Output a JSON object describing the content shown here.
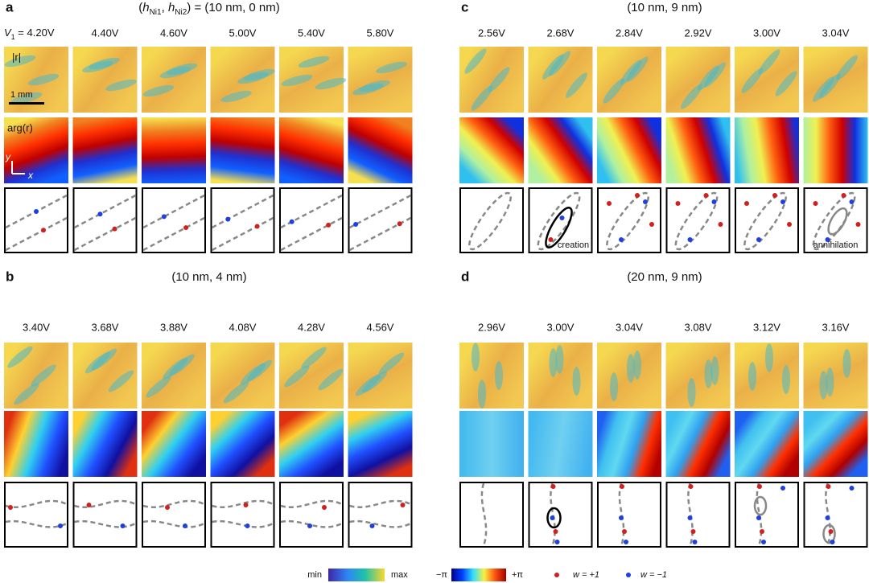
{
  "panels": [
    {
      "letter": "a",
      "title": [
        "(",
        "h",
        "Ni1",
        ", ",
        "h",
        "Ni2",
        ") = (10 nm, 0 nm)"
      ],
      "voltage_prefix": [
        "V",
        "1",
        " = "
      ],
      "voltages": [
        "4.20V",
        "4.40V",
        "4.60V",
        "5.00V",
        "5.40V",
        "5.80V"
      ],
      "row_labels": [
        "|r|",
        "arg(r)"
      ],
      "scale_bar": "1 mm",
      "axes": [
        "y",
        "x"
      ]
    },
    {
      "letter": "b",
      "title": "(10 nm, 4 nm)",
      "voltages": [
        "3.40V",
        "3.68V",
        "3.88V",
        "4.08V",
        "4.28V",
        "4.56V"
      ]
    },
    {
      "letter": "c",
      "title": "(10 nm, 9 nm)",
      "voltages": [
        "2.56V",
        "2.68V",
        "2.84V",
        "2.92V",
        "3.00V",
        "3.04V"
      ],
      "creation_label": "creation",
      "annihilation_label": "annihilation"
    },
    {
      "letter": "d",
      "title": "(20 nm, 9 nm)",
      "voltages": [
        "2.96V",
        "3.00V",
        "3.04V",
        "3.08V",
        "3.12V",
        "3.16V"
      ]
    }
  ],
  "legend": {
    "amplitude": [
      "min",
      "max"
    ],
    "phase": [
      "−π",
      "+π"
    ],
    "winding": [
      "w = +1",
      "w = −1"
    ]
  }
}
